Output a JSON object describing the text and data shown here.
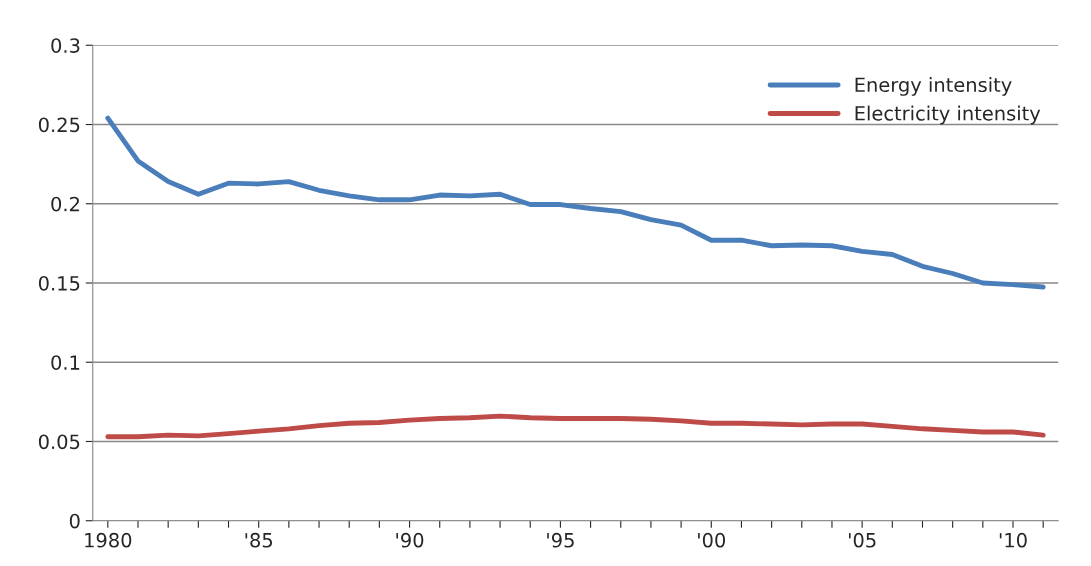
{
  "chart_data": {
    "type": "line",
    "categories": [
      "1980",
      null,
      null,
      null,
      null,
      "'85",
      null,
      null,
      null,
      null,
      "'90",
      null,
      null,
      null,
      null,
      "'95",
      null,
      null,
      null,
      null,
      "'00",
      null,
      null,
      null,
      null,
      "'05",
      null,
      null,
      null,
      null,
      "'10",
      null
    ],
    "series": [
      {
        "name": "Energy intensity",
        "color": "#4a7ebb",
        "values": [
          0.254,
          0.227,
          0.214,
          0.206,
          0.213,
          0.2125,
          0.214,
          0.2085,
          0.205,
          0.2025,
          0.2025,
          0.2055,
          0.205,
          0.206,
          0.1995,
          0.1995,
          0.197,
          0.195,
          0.19,
          0.1865,
          0.177,
          0.177,
          0.1735,
          0.174,
          0.1735,
          0.17,
          0.168,
          0.1605,
          0.156,
          0.15,
          0.149,
          0.1475
        ]
      },
      {
        "name": "Electricity intensity",
        "color": "#be4b48",
        "values": [
          0.053,
          0.053,
          0.054,
          0.0535,
          0.055,
          0.0565,
          0.058,
          0.06,
          0.0615,
          0.062,
          0.0635,
          0.0645,
          0.065,
          0.066,
          0.065,
          0.0645,
          0.0645,
          0.0645,
          0.064,
          0.063,
          0.0615,
          0.0615,
          0.061,
          0.0605,
          0.061,
          0.061,
          0.0595,
          0.058,
          0.057,
          0.056,
          0.056,
          0.054
        ]
      }
    ],
    "ylim": [
      0,
      0.3
    ],
    "yticks": [
      0,
      0.05,
      0.1,
      0.15,
      0.2,
      0.25,
      0.3
    ],
    "grid": "y",
    "legend": "top right",
    "marker": "none",
    "line_style": "solid"
  }
}
